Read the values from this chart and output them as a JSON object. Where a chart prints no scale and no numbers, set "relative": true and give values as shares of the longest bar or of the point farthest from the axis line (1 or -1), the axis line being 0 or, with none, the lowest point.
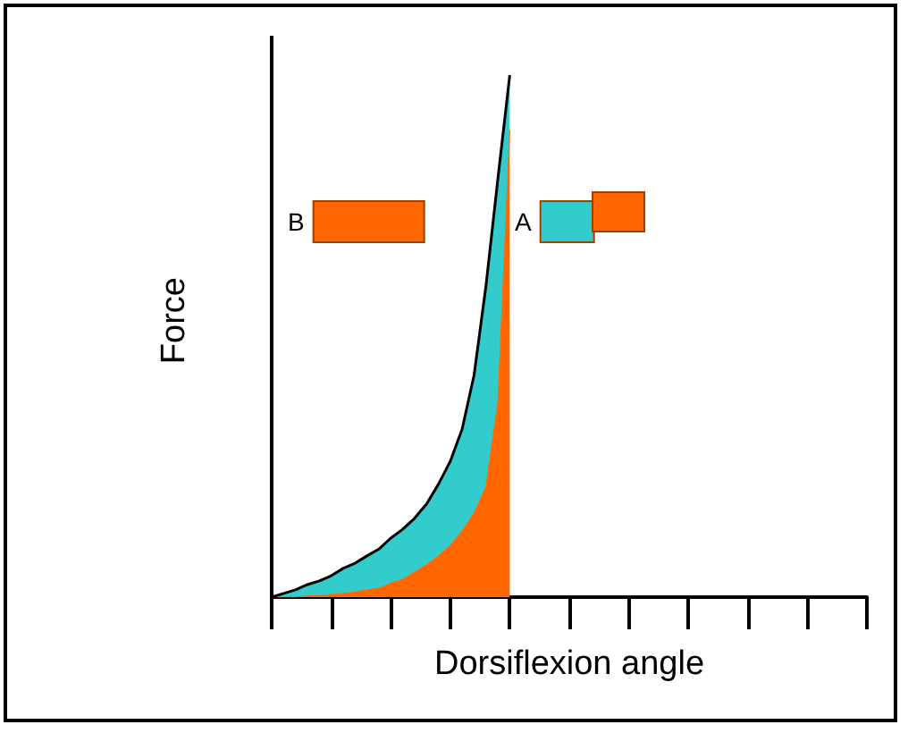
{
  "chart_data": {
    "type": "area",
    "stacked": true,
    "relative": true,
    "xlabel": "Dorsiflexion angle",
    "ylabel": "Force",
    "categories": [
      null,
      null,
      null,
      null,
      null,
      null,
      null,
      null,
      null,
      null,
      null,
      null,
      null,
      null,
      null,
      null,
      null,
      null,
      null,
      null,
      null,
      null,
      null,
      null,
      null,
      null,
      null,
      null,
      null,
      null,
      null,
      null,
      null,
      null,
      null,
      null,
      null,
      null,
      null,
      null,
      null,
      null,
      null,
      null,
      null,
      null,
      null,
      null,
      null,
      null,
      null
    ],
    "series": [
      {
        "name": "B",
        "color": "#ff6600",
        "values": [
          0,
          0,
          0,
          0.002,
          0.003,
          0.005,
          0.007,
          0.01,
          0.014,
          0.017,
          0.027,
          0.034,
          0.048,
          0.062,
          0.079,
          0.099,
          0.127,
          0.161,
          0.212,
          0.373,
          0.894,
          null,
          null,
          null,
          null,
          null,
          null,
          null,
          null,
          null,
          null,
          null,
          null,
          null,
          null,
          null,
          null,
          null,
          null,
          null,
          null,
          null,
          null,
          null,
          null,
          null,
          null,
          null,
          null,
          null,
          null
        ]
      },
      {
        "name": "A",
        "color": "#33cccc",
        "values": [
          0,
          0.007,
          0.014,
          0.022,
          0.028,
          0.036,
          0.048,
          0.055,
          0.065,
          0.075,
          0.086,
          0.096,
          0.103,
          0.116,
          0.137,
          0.161,
          0.195,
          0.264,
          0.384,
          0.428,
          0.106,
          null,
          null,
          null,
          null,
          null,
          null,
          null,
          null,
          null,
          null,
          null,
          null,
          null,
          null,
          null,
          null,
          null,
          null,
          null,
          null,
          null,
          null,
          null,
          null,
          null,
          null,
          null,
          null,
          null,
          null
        ]
      }
    ],
    "legend": "top",
    "grid": false,
    "marker": "none"
  }
}
